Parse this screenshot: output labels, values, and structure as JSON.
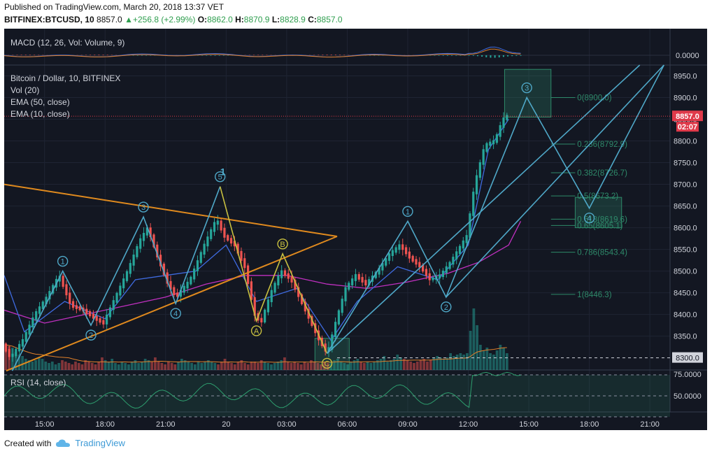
{
  "header": {
    "published": "Published on TradingView.com, March 20, 2018 13:37 VET",
    "symbol": "BITFINEX:BTCUSD, 10",
    "last": "8857.0",
    "change": "+256.8 (+2.99%)",
    "o_label": "O:",
    "o": "8862.0",
    "h_label": "H:",
    "h": "8870.9",
    "l_label": "L:",
    "l": "8828.9",
    "c_label": "C:",
    "c": "8857.0"
  },
  "footer": {
    "created_with": "Created with",
    "brand": "TradingView"
  },
  "colors": {
    "background": "#131722",
    "up": "#26a69a",
    "down": "#ef5350",
    "ema50": "#c030c0",
    "ema10": "#3f6be0",
    "wave": "#4fa8c8",
    "triangle": "#e08a1e",
    "fib": "#2e8a6a",
    "price_tag": "#e03a4a"
  },
  "panes": {
    "macd_label": "MACD (12, 26, Vol: Volume, 9)",
    "macd_value": "0.0000",
    "main_title": "Bitcoin / Dollar, 10, BITFINEX",
    "main_lines": [
      "Vol (20)",
      "EMA (50, close)",
      "EMA (10, close)"
    ],
    "rsi_label": "RSI (14, close)",
    "rsi_ticks": [
      "75.0000",
      "50.0000"
    ]
  },
  "price_tags": {
    "last": "8857.0",
    "countdown": "02:07",
    "level": "8300.0"
  },
  "chart_data": {
    "type": "candlestick",
    "title": "Bitcoin / Dollar, 10, BITFINEX",
    "y_ticks": [
      8950,
      8900,
      8850,
      8800,
      8750,
      8700,
      8650,
      8600,
      8550,
      8500,
      8450,
      8400,
      8350
    ],
    "y_tick_labels": [
      "8950.0",
      "8900.0",
      "8850.0",
      "8800.0",
      "8750.0",
      "8700.0",
      "8650.0",
      "8600.0",
      "8550.0",
      "8500.0",
      "8450.0",
      "8400.0",
      "8350.0"
    ],
    "ylim": [
      8272,
      8975
    ],
    "x_ticks": [
      {
        "label": "15:00",
        "h": 15
      },
      {
        "label": "18:00",
        "h": 18
      },
      {
        "label": "21:00",
        "h": 21
      },
      {
        "label": "20",
        "h": 24
      },
      {
        "label": "03:00",
        "h": 27
      },
      {
        "label": "06:00",
        "h": 30
      },
      {
        "label": "09:00",
        "h": 33
      },
      {
        "label": "12:00",
        "h": 36
      },
      {
        "label": "15:00",
        "h": 39
      },
      {
        "label": "18:00",
        "h": 42
      },
      {
        "label": "21:00",
        "h": 45
      }
    ],
    "xlim_hours": [
      13.0,
      46.0
    ],
    "candles_end_hour": 38.0,
    "price_path": [
      [
        13.0,
        8330
      ],
      [
        13.4,
        8300
      ],
      [
        14.0,
        8340
      ],
      [
        14.6,
        8400
      ],
      [
        15.2,
        8440
      ],
      [
        15.8,
        8490
      ],
      [
        16.4,
        8420
      ],
      [
        17.0,
        8410
      ],
      [
        17.6,
        8390
      ],
      [
        18.0,
        8380
      ],
      [
        18.6,
        8440
      ],
      [
        19.2,
        8500
      ],
      [
        19.8,
        8570
      ],
      [
        20.2,
        8600
      ],
      [
        20.7,
        8530
      ],
      [
        21.2,
        8470
      ],
      [
        21.6,
        8440
      ],
      [
        22.3,
        8480
      ],
      [
        23.0,
        8560
      ],
      [
        23.6,
        8620
      ],
      [
        24.0,
        8580
      ],
      [
        24.5,
        8560
      ],
      [
        25.0,
        8510
      ],
      [
        25.5,
        8400
      ],
      [
        25.8,
        8380
      ],
      [
        26.3,
        8450
      ],
      [
        26.8,
        8500
      ],
      [
        27.3,
        8480
      ],
      [
        27.8,
        8430
      ],
      [
        28.3,
        8380
      ],
      [
        28.7,
        8340
      ],
      [
        29.1,
        8310
      ],
      [
        29.5,
        8380
      ],
      [
        30.0,
        8460
      ],
      [
        30.5,
        8490
      ],
      [
        31.0,
        8470
      ],
      [
        31.6,
        8500
      ],
      [
        32.2,
        8540
      ],
      [
        32.7,
        8560
      ],
      [
        33.2,
        8530
      ],
      [
        33.7,
        8510
      ],
      [
        34.2,
        8480
      ],
      [
        34.7,
        8490
      ],
      [
        35.2,
        8520
      ],
      [
        35.6,
        8550
      ],
      [
        36.0,
        8580
      ],
      [
        36.4,
        8700
      ],
      [
        36.9,
        8790
      ],
      [
        37.4,
        8800
      ],
      [
        37.8,
        8850
      ],
      [
        38.0,
        8857
      ]
    ],
    "ema50": [
      [
        13.0,
        8410
      ],
      [
        15.0,
        8380
      ],
      [
        17.0,
        8400
      ],
      [
        19.0,
        8420
      ],
      [
        21.0,
        8440
      ],
      [
        23.0,
        8470
      ],
      [
        25.0,
        8490
      ],
      [
        27.0,
        8490
      ],
      [
        29.0,
        8470
      ],
      [
        31.0,
        8460
      ],
      [
        33.0,
        8475
      ],
      [
        35.0,
        8495
      ],
      [
        36.5,
        8520
      ],
      [
        38.0,
        8560
      ],
      [
        38.6,
        8615
      ]
    ],
    "ema10": [
      [
        13.0,
        8490
      ],
      [
        14.0,
        8360
      ],
      [
        16.0,
        8430
      ],
      [
        18.0,
        8390
      ],
      [
        19.5,
        8480
      ],
      [
        21.0,
        8490
      ],
      [
        22.5,
        8500
      ],
      [
        24.0,
        8560
      ],
      [
        25.5,
        8430
      ],
      [
        27.5,
        8460
      ],
      [
        29.2,
        8340
      ],
      [
        30.5,
        8430
      ],
      [
        32.5,
        8510
      ],
      [
        34.5,
        8480
      ],
      [
        36.0,
        8560
      ],
      [
        37.0,
        8780
      ],
      [
        38.0,
        8850
      ]
    ],
    "volume": [
      0.9,
      0.85,
      0.8,
      0.65,
      0.55,
      0.5,
      0.4,
      0.35,
      0.3,
      0.35,
      0.45,
      0.4,
      0.3,
      0.25,
      0.3,
      0.2,
      0.25,
      0.35,
      0.3,
      0.25,
      0.2,
      0.3,
      0.25,
      0.2,
      0.35,
      0.3,
      0.25,
      0.2,
      0.3,
      0.45,
      0.35,
      0.3,
      0.4,
      0.25,
      0.2,
      0.3,
      0.25,
      0.2,
      0.3,
      0.35,
      0.25,
      0.3,
      0.4,
      0.35,
      0.3,
      0.45,
      0.3,
      0.25,
      0.2,
      0.3,
      0.25,
      0.2,
      0.3,
      0.4,
      0.35,
      0.3,
      0.25,
      0.2,
      0.3,
      0.25,
      0.3,
      0.35,
      0.3,
      0.25,
      0.2,
      0.3,
      0.4,
      0.3,
      0.25,
      0.2,
      0.3,
      0.35,
      0.25,
      0.2,
      0.3,
      0.3,
      0.25,
      0.35,
      0.3,
      0.25,
      0.2,
      0.25,
      0.3,
      0.35,
      0.45,
      0.3,
      0.25,
      0.3,
      0.25,
      0.2,
      0.3,
      0.25,
      0.35,
      0.3,
      0.25,
      0.2,
      0.3,
      0.25,
      0.3,
      0.35,
      0.4,
      0.3,
      0.25,
      0.2,
      0.3,
      0.35,
      0.4,
      0.3,
      0.25,
      0.3,
      0.25,
      0.3,
      0.35,
      0.4,
      0.5,
      0.3,
      0.35,
      0.4,
      0.55,
      0.45,
      0.4,
      0.35,
      0.3,
      0.25,
      0.3,
      0.35,
      0.4,
      0.3,
      0.35,
      0.45,
      0.5,
      0.45,
      0.4,
      0.45,
      0.6,
      0.5,
      0.55,
      0.6,
      0.55,
      0.6,
      1.4,
      2.2,
      1.6,
      0.9,
      0.7,
      0.8,
      0.6,
      0.55,
      0.7,
      0.9,
      0.8,
      0.6
    ],
    "triangle": {
      "upper": [
        [
          13.0,
          8700
        ],
        [
          29.5,
          8580
        ]
      ],
      "lower": [
        [
          13.1,
          8270
        ],
        [
          29.5,
          8580
        ]
      ]
    },
    "waves": [
      {
        "points": [
          [
            13.4,
            8270
          ],
          [
            15.9,
            8500
          ],
          [
            17.3,
            8375
          ],
          [
            19.9,
            8625
          ],
          [
            21.5,
            8425
          ],
          [
            23.7,
            8695
          ]
        ],
        "labels": [
          "1",
          "2",
          "3",
          "4",
          "5"
        ],
        "label_idx": [
          1,
          2,
          3,
          4,
          5
        ]
      },
      {
        "points": [
          [
            23.7,
            8695
          ],
          [
            25.5,
            8385
          ],
          [
            26.8,
            8540
          ],
          [
            29.0,
            8310
          ]
        ],
        "labels": [
          "A",
          "B",
          "C"
        ],
        "label_idx": [
          1,
          2,
          3
        ],
        "color": "#c8c040"
      },
      {
        "points": [
          [
            29.0,
            8310
          ],
          [
            33.0,
            8615
          ],
          [
            34.9,
            8440
          ],
          [
            38.9,
            8900
          ],
          [
            42.0,
            8645
          ],
          [
            45.7,
            8975
          ]
        ],
        "labels": [
          "1",
          "2",
          "3",
          "4"
        ],
        "label_idx": [
          1,
          2,
          3,
          4
        ]
      }
    ],
    "wave_big_label": "1",
    "channel_lines": [
      [
        [
          29.0,
          8310
        ],
        [
          44.5,
          8975
        ]
      ],
      [
        [
          34.9,
          8440
        ],
        [
          45.7,
          8975
        ]
      ]
    ],
    "fib_levels": [
      {
        "ratio": "0",
        "label": "0(8900.0)",
        "value": 8900.0
      },
      {
        "ratio": "0.236",
        "label": "0.236(8792.9)",
        "value": 8792.9
      },
      {
        "ratio": "0.382",
        "label": "0.382(8726.7)",
        "value": 8726.7
      },
      {
        "ratio": "0.5",
        "label": "0.5(8673.2)",
        "value": 8673.2
      },
      {
        "ratio": "0.618",
        "label": "0.618(8619.6)",
        "value": 8619.6
      },
      {
        "ratio": "0.65",
        "label": "0.65(8605.1)",
        "value": 8605.1
      },
      {
        "ratio": "0.786",
        "label": "0.786(8543.4)",
        "value": 8543.4
      },
      {
        "ratio": "1",
        "label": "1(8446.3)",
        "value": 8446.3
      }
    ],
    "zones": [
      {
        "h0": 37.8,
        "h1": 40.1,
        "p0": 8855,
        "p1": 8965
      },
      {
        "h0": 41.3,
        "h1": 43.6,
        "p0": 8600,
        "p1": 8670
      },
      {
        "h0": 28.4,
        "h1": 30.1,
        "p0": 8272,
        "p1": 8345
      }
    ],
    "last_price": 8857.0,
    "level": 8300.0
  }
}
